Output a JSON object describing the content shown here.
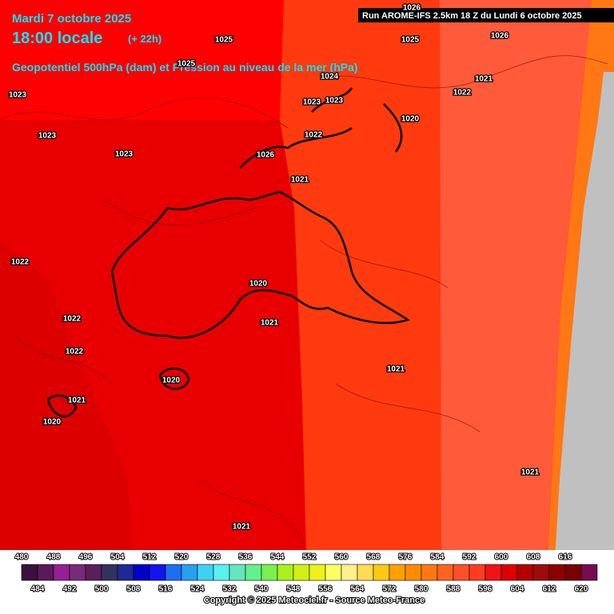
{
  "header": {
    "date": "Mardi 7 octobre 2025",
    "time": "18:00 locale",
    "lead": "(+ 22h)",
    "subtitle": "Geopotentiel 500hPa (dam) et Pression au niveau de la mer (hPa)",
    "run": "Run AROME-IFS 2.5km 18 Z du Lundi 6 octobre 2025"
  },
  "pressure_labels": [
    "1025",
    "1026",
    "1025",
    "1026",
    "1025",
    "1024",
    "1023",
    "1021",
    "1022",
    "1023",
    "1023",
    "1020",
    "1023",
    "1022",
    "1023",
    "1026",
    "1021",
    "1022",
    "1020",
    "1022",
    "1021",
    "1022",
    "1021",
    "1020",
    "1021",
    "1020",
    "1021",
    "1021"
  ],
  "legend": {
    "upper_labels": [
      480,
      488,
      496,
      504,
      512,
      520,
      528,
      536,
      544,
      552,
      560,
      568,
      576,
      584,
      592,
      600,
      608,
      616
    ],
    "lower_labels": [
      484,
      492,
      500,
      508,
      516,
      524,
      532,
      540,
      548,
      556,
      564,
      572,
      580,
      588,
      596,
      604,
      612,
      620
    ],
    "colors": [
      "#3c0f3c",
      "#5a1a5a",
      "#961e96",
      "#7a2a7a",
      "#5a1e5a",
      "#32325f",
      "#1e2896",
      "#0000c8",
      "#1414f0",
      "#1e6ef0",
      "#28a0f0",
      "#3cd2f5",
      "#5af0f0",
      "#64e6be",
      "#64f08c",
      "#78f050",
      "#aaf01e",
      "#d2f014",
      "#f0f01e",
      "#ffff64",
      "#fff08c",
      "#ffdc50",
      "#ffc814",
      "#ffa000",
      "#ff8c00",
      "#ff7814",
      "#ff641e",
      "#ff5028",
      "#ff3c1e",
      "#f01414",
      "#dc0000",
      "#b40000",
      "#a00a0a",
      "#8c0000",
      "#780000",
      "#780a50"
    ]
  },
  "footer": {
    "copyright": "Copyright © 2025 Meteociel.fr - Source Meteo-France"
  }
}
